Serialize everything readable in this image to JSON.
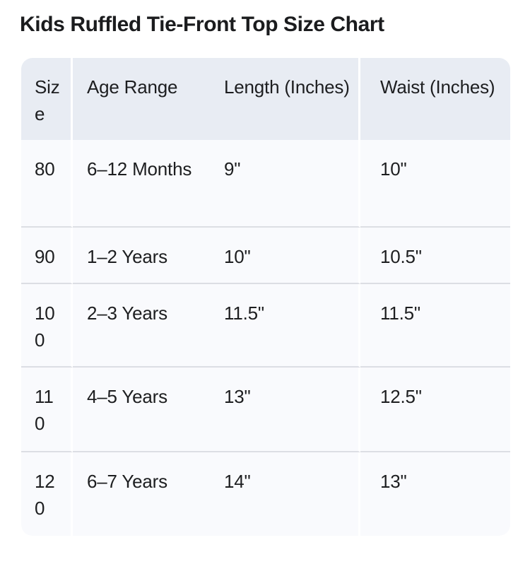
{
  "page": {
    "title": "Kids Ruffled Tie-Front Top Size Chart"
  },
  "table": {
    "columns": [
      "Size",
      "Age Range",
      "Length (Inches)",
      "Waist (Inches)"
    ],
    "rows": [
      [
        "80",
        "6–12 Months",
        "9\"",
        "10\""
      ],
      [
        "90",
        "1–2 Years",
        "10\"",
        "10.5\""
      ],
      [
        "100",
        "2–3 Years",
        "11.5\"",
        "11.5\""
      ],
      [
        "110",
        "4–5 Years",
        "13\"",
        "12.5\""
      ],
      [
        "120",
        "6–7 Years",
        "14\"",
        "13\""
      ]
    ],
    "colors": {
      "header_bg": "#e8ecf3",
      "row_bg": "#f9fafd",
      "divider": "#dcdee4",
      "text": "#1d1e20"
    }
  },
  "chart_data": {
    "type": "table",
    "title": "Kids Ruffled Tie-Front Top Size Chart",
    "columns": [
      "Size",
      "Age Range",
      "Length (Inches)",
      "Waist (Inches)"
    ],
    "rows": [
      [
        "80",
        "6–12 Months",
        "9\"",
        "10\""
      ],
      [
        "90",
        "1–2 Years",
        "10\"",
        "10.5\""
      ],
      [
        "100",
        "2–3 Years",
        "11.5\"",
        "11.5\""
      ],
      [
        "110",
        "4–5 Years",
        "13\"",
        "12.5\""
      ],
      [
        "120",
        "6–7 Years",
        "14\"",
        "13\""
      ]
    ]
  }
}
